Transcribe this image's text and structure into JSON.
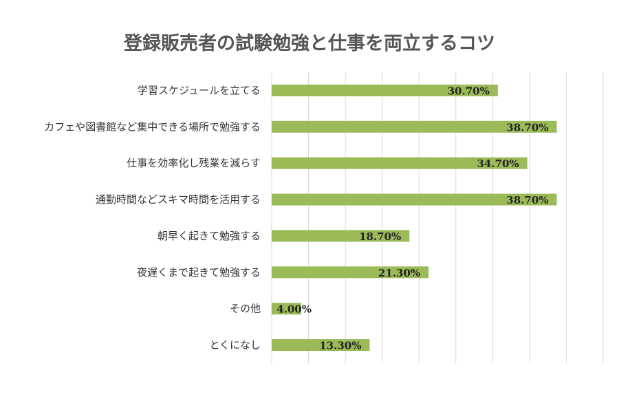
{
  "chart_data": {
    "type": "bar",
    "orientation": "horizontal",
    "title": "登録販売者の試験勉強と仕事を両立するコツ",
    "xlabel": "",
    "ylabel": "",
    "categories": [
      "学習スケジュールを立てる",
      "カフェや図書館など集中できる場所で勉強する",
      "仕事を効率化し残業を減らす",
      "通勤時間などスキマ時間を活用する",
      "朝早く起きて勉強する",
      "夜遅くまで起きて勉強する",
      "その他",
      "とくになし"
    ],
    "values": [
      30.7,
      38.7,
      34.7,
      38.7,
      18.7,
      21.3,
      4.0,
      13.3
    ],
    "data_labels": [
      "30.70%",
      "38.70%",
      "34.70%",
      "38.70%",
      "18.70%",
      "21.30%",
      "4.00%",
      "13.30%"
    ],
    "xlim": [
      0,
      45
    ],
    "grid_step": 5,
    "grid": true,
    "legend": "none",
    "bar_color": "#9bbb59"
  }
}
